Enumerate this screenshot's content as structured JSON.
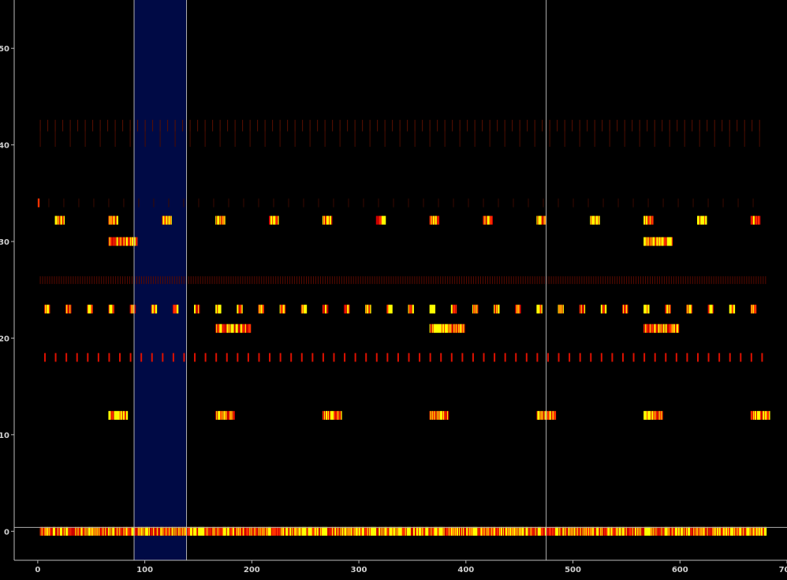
{
  "chart_data": {
    "type": "raster",
    "xlim": [
      -22,
      700
    ],
    "ylim": [
      -3,
      55
    ],
    "xticks": [
      0,
      100,
      200,
      300,
      400,
      500,
      600,
      700
    ],
    "yticks": [
      0,
      10,
      20,
      30,
      40,
      50
    ],
    "xtick_labels": [
      "0",
      "100",
      "200",
      "300",
      "400",
      "500",
      "600",
      "700"
    ],
    "ytick_labels": [
      "0",
      "10",
      "20",
      "30",
      "40",
      "50"
    ],
    "grid": false,
    "legend": "none",
    "highlight_region": {
      "x": [
        90,
        139
      ],
      "color": "#000a45"
    },
    "vlines": [
      90,
      139,
      475
    ],
    "hline_y": 0.4,
    "colors": {
      "background": "#000000",
      "axis": "#bbbbbb",
      "low": "#cc0000",
      "mid": "#ff3300",
      "high": "#ffff00"
    },
    "rows": [
      {
        "y": 42,
        "kind": "sparse",
        "start": 2,
        "end": 680,
        "step": 7,
        "len": 1.2,
        "color": "#5a1000"
      },
      {
        "y": 40.6,
        "kind": "sparse",
        "start": 2,
        "end": 680,
        "step": 14,
        "len": 1.6,
        "color": "#4a0c00"
      },
      {
        "y": 34,
        "kind": "sparse",
        "start": 10,
        "end": 675,
        "step": 14,
        "len": 0.9,
        "color": "#3a0a00"
      },
      {
        "y": 34,
        "kind": "bursts",
        "starts": [
          0
        ],
        "width": 1.5,
        "len": 0.9
      },
      {
        "y": 32.2,
        "kind": "bursts",
        "starts": [
          16,
          66,
          116,
          166,
          216,
          266,
          316,
          366,
          416,
          466,
          516,
          566,
          616,
          666
        ],
        "width": 9,
        "len": 0.9
      },
      {
        "y": 30,
        "kind": "bursts",
        "starts": [
          66,
          566
        ],
        "width": 27,
        "len": 0.9
      },
      {
        "y": 26,
        "kind": "sparse",
        "start": 2,
        "end": 680,
        "step": 2.2,
        "len": 0.8,
        "color": "#5a0a00"
      },
      {
        "y": 23,
        "kind": "bursts",
        "starts": [
          6,
          26,
          46,
          66,
          86,
          106,
          126,
          146,
          166,
          186,
          206,
          226,
          246,
          266,
          286,
          306,
          326,
          346,
          366,
          386,
          406,
          426,
          446,
          466,
          486,
          506,
          526,
          546,
          566,
          586,
          606,
          626,
          646,
          666
        ],
        "width": 5,
        "len": 0.9
      },
      {
        "y": 21,
        "kind": "bursts",
        "starts": [
          166,
          366,
          566
        ],
        "width": 33,
        "len": 0.9
      },
      {
        "y": 18,
        "kind": "ticks",
        "start": 6,
        "end": 680,
        "step": 10,
        "len": 0.9,
        "color": "#dd1100"
      },
      {
        "y": 12,
        "kind": "bursts",
        "starts": [
          66,
          166,
          266,
          366,
          466,
          566,
          666
        ],
        "width": 18,
        "len": 0.9
      },
      {
        "y": 0,
        "kind": "dense",
        "start": 2,
        "end": 680,
        "len": 0.9
      }
    ]
  }
}
